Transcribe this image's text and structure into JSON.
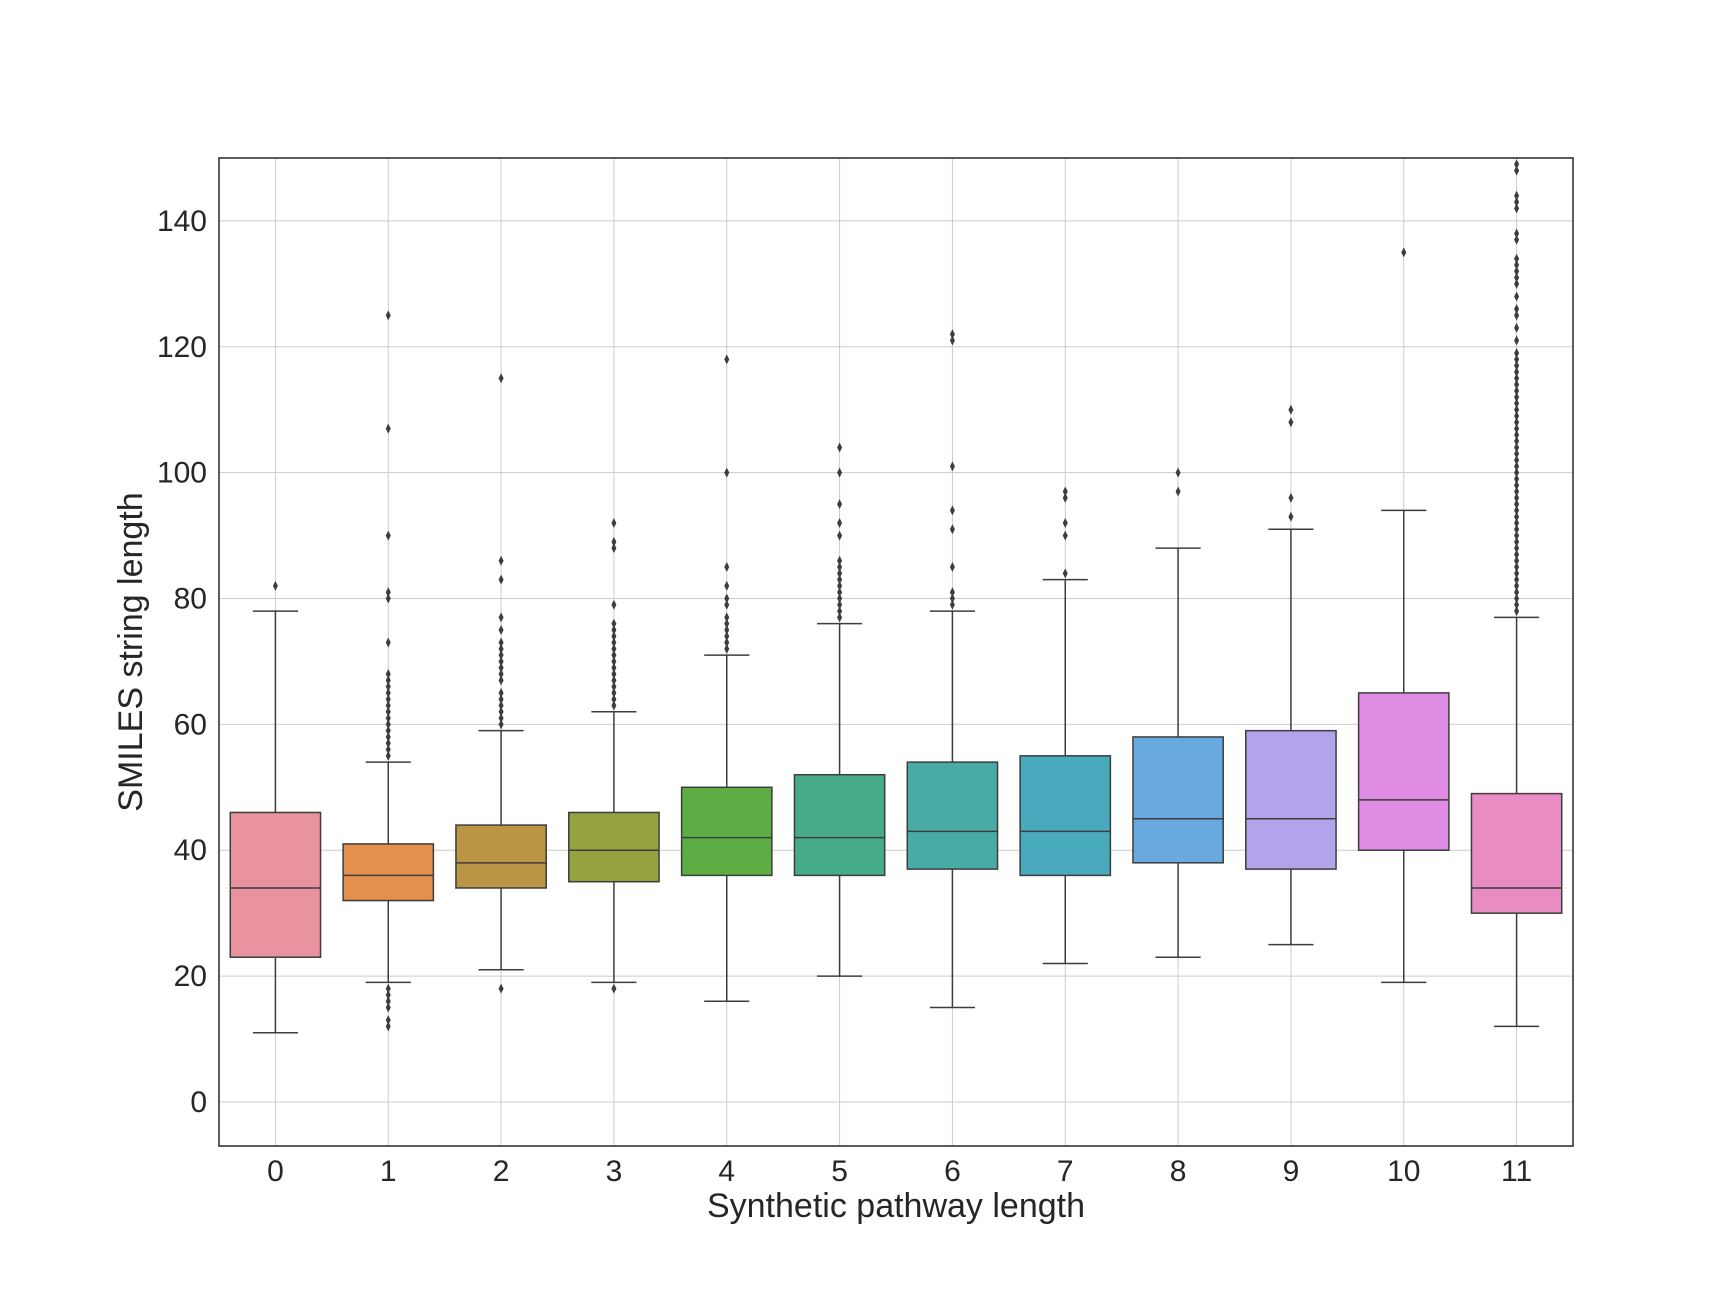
{
  "chart_data": {
    "type": "box",
    "title": "",
    "xlabel": "Synthetic pathway length",
    "ylabel": "SMILES string length",
    "ylim": [
      -7,
      150
    ],
    "yticks": [
      0,
      20,
      40,
      60,
      80,
      100,
      120,
      140
    ],
    "grid": true,
    "categories": [
      "0",
      "1",
      "2",
      "3",
      "4",
      "5",
      "6",
      "7",
      "8",
      "9",
      "10",
      "11"
    ],
    "boxes": [
      {
        "category": "0",
        "color": "#e8939f",
        "whisker_low": 11,
        "q1": 23,
        "median": 34,
        "q3": 46,
        "whisker_high": 78,
        "outliers": [
          82
        ]
      },
      {
        "category": "1",
        "color": "#e48f4d",
        "whisker_low": 19,
        "q1": 32,
        "median": 36,
        "q3": 41,
        "whisker_high": 54,
        "outliers": [
          12,
          13,
          15,
          16,
          17,
          18,
          55,
          56,
          57,
          58,
          59,
          60,
          61,
          62,
          63,
          64,
          65,
          66,
          67,
          68,
          73,
          80,
          81,
          90,
          107,
          125
        ]
      },
      {
        "category": "2",
        "color": "#ba9543",
        "whisker_low": 21,
        "q1": 34,
        "median": 38,
        "q3": 44,
        "whisker_high": 59,
        "outliers": [
          18,
          60,
          61,
          62,
          63,
          64,
          65,
          67,
          68,
          69,
          70,
          71,
          72,
          73,
          75,
          77,
          83,
          86,
          115
        ]
      },
      {
        "category": "3",
        "color": "#96a240",
        "whisker_low": 19,
        "q1": 35,
        "median": 40,
        "q3": 46,
        "whisker_high": 62,
        "outliers": [
          18,
          63,
          64,
          65,
          66,
          67,
          68,
          69,
          70,
          71,
          72,
          73,
          74,
          75,
          76,
          79,
          88,
          89,
          92
        ]
      },
      {
        "category": "4",
        "color": "#5cad44",
        "whisker_low": 16,
        "q1": 36,
        "median": 42,
        "q3": 50,
        "whisker_high": 71,
        "outliers": [
          72,
          73,
          74,
          75,
          76,
          77,
          79,
          80,
          82,
          85,
          100,
          118
        ]
      },
      {
        "category": "5",
        "color": "#46ab8a",
        "whisker_low": 20,
        "q1": 36,
        "median": 42,
        "q3": 52,
        "whisker_high": 76,
        "outliers": [
          77,
          78,
          79,
          80,
          81,
          82,
          83,
          84,
          85,
          86,
          90,
          92,
          95,
          100,
          104
        ]
      },
      {
        "category": "6",
        "color": "#48aba6",
        "whisker_low": 15,
        "q1": 37,
        "median": 43,
        "q3": 54,
        "whisker_high": 78,
        "outliers": [
          79,
          80,
          81,
          85,
          91,
          94,
          101,
          121,
          122
        ]
      },
      {
        "category": "7",
        "color": "#4aaabd",
        "whisker_low": 22,
        "q1": 36,
        "median": 43,
        "q3": 55,
        "whisker_high": 83,
        "outliers": [
          84,
          90,
          92,
          96,
          97
        ]
      },
      {
        "category": "8",
        "color": "#68aadf",
        "whisker_low": 23,
        "q1": 38,
        "median": 45,
        "q3": 58,
        "whisker_high": 88,
        "outliers": [
          97,
          100
        ]
      },
      {
        "category": "9",
        "color": "#b3a3ea",
        "whisker_low": 25,
        "q1": 37,
        "median": 45,
        "q3": 59,
        "whisker_high": 91,
        "outliers": [
          93,
          96,
          108,
          110
        ]
      },
      {
        "category": "10",
        "color": "#df8ce5",
        "whisker_low": 19,
        "q1": 40,
        "median": 48,
        "q3": 65,
        "whisker_high": 94,
        "outliers": [
          135
        ]
      },
      {
        "category": "11",
        "color": "#e88cc3",
        "whisker_low": 12,
        "q1": 30,
        "median": 34,
        "q3": 49,
        "whisker_high": 77,
        "outliers": [
          78,
          79,
          80,
          81,
          82,
          83,
          84,
          85,
          86,
          87,
          88,
          89,
          90,
          91,
          92,
          93,
          94,
          95,
          96,
          97,
          98,
          99,
          100,
          101,
          102,
          103,
          104,
          105,
          106,
          107,
          108,
          109,
          110,
          111,
          112,
          113,
          114,
          115,
          116,
          117,
          118,
          119,
          121,
          123,
          125,
          126,
          128,
          130,
          131,
          132,
          133,
          134,
          137,
          138,
          142,
          143,
          144,
          148,
          149
        ]
      }
    ]
  }
}
